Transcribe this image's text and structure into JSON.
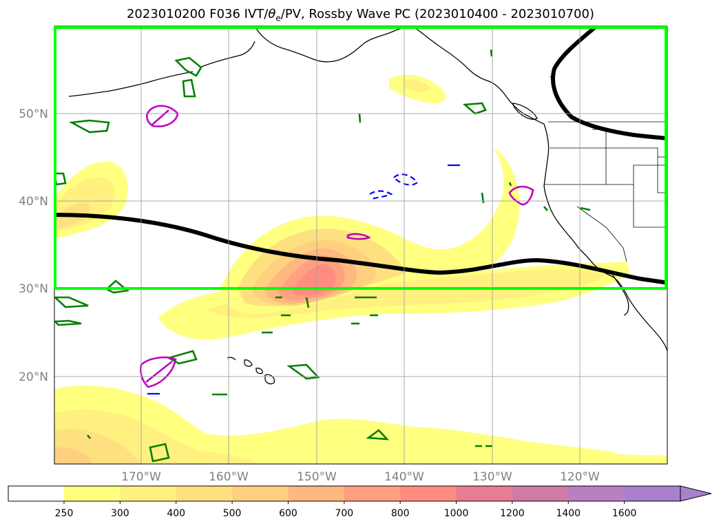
{
  "title": {
    "prefix": "2023010200 F036 IVT/",
    "theta": "θ",
    "theta_sub": "e",
    "suffix": "/PV, Rossby Wave PC (2023010400 - 2023010700)"
  },
  "axes": {
    "lat_labels": [
      "50°N",
      "40°N",
      "30°N",
      "20°N"
    ],
    "lon_labels": [
      "170°W",
      "160°W",
      "150°W",
      "140°W",
      "130°W",
      "120°W"
    ]
  },
  "colorbar": {
    "tick_labels": [
      "250",
      "300",
      "400",
      "500",
      "600",
      "700",
      "800",
      "1000",
      "1200",
      "1400",
      "1600"
    ],
    "colors": [
      "#ffffff",
      "#ffff80",
      "#fff080",
      "#ffe080",
      "#ffd080",
      "#ffb880",
      "#ffa080",
      "#ff8c80",
      "#e87c90",
      "#d07aa8",
      "#b880c0",
      "#a880cc"
    ]
  },
  "colors": {
    "box": "#00ff00",
    "wave_line": "#000000",
    "pv_green": "#008000",
    "pv_magenta": "#c000c0",
    "pv_blue": "#0000ff"
  }
}
